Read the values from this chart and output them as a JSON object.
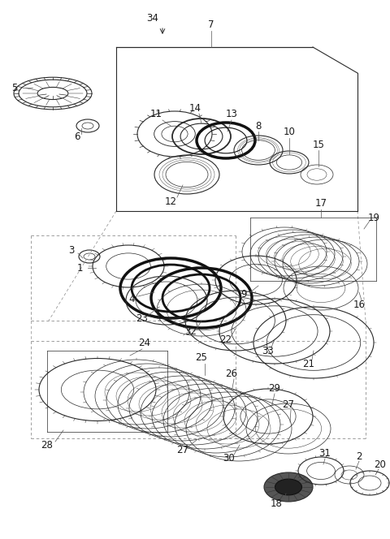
{
  "bg_color": "#ffffff",
  "line_color": "#2a2a2a",
  "fig_width": 4.8,
  "fig_height": 6.64,
  "dpi": 100
}
